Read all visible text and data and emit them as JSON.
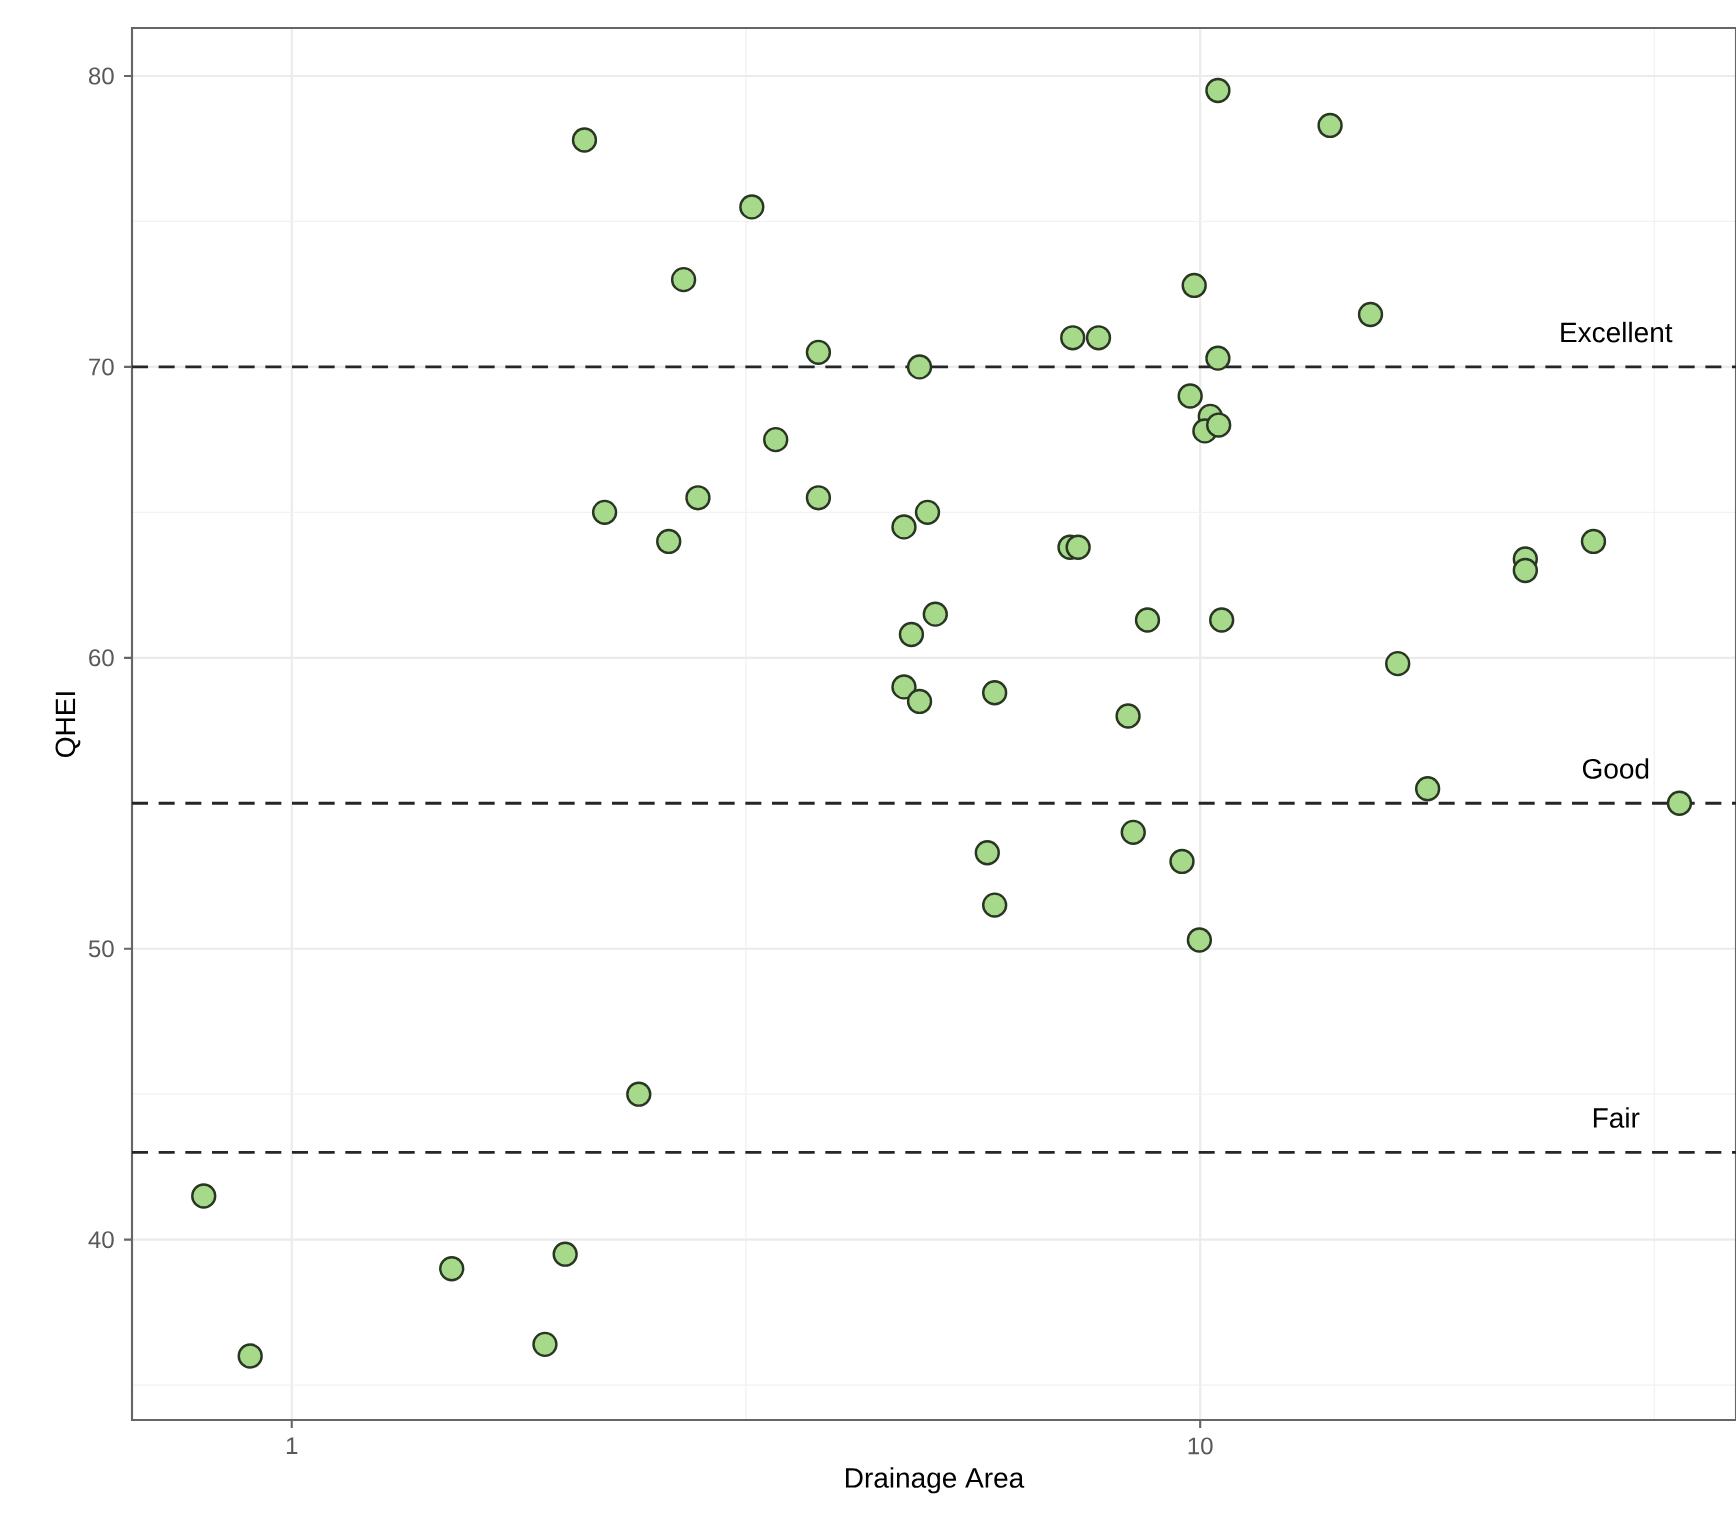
{
  "chart_data": {
    "type": "scatter",
    "xlabel": "Drainage Area",
    "ylabel": "QHEI",
    "log": "x",
    "xlim": [
      0.667,
      38.9
    ],
    "ylim": [
      33.8,
      81.65
    ],
    "xticks": [
      1,
      10
    ],
    "yticks": [
      40,
      50,
      60,
      70,
      80
    ],
    "grid": true,
    "marker": "circle",
    "series": [
      {
        "color": "#a6d98a",
        "x": [
          2.1,
          3.21,
          2.7,
          3.8,
          4.91,
          3.41,
          2.21,
          2.8,
          2.6,
          3.8,
          4.72,
          5.01,
          4.81,
          5.11,
          4.72,
          4.91,
          10.46,
          13.9,
          9.85,
          15.4,
          7.24,
          7.73,
          10.46,
          9.75,
          10.26,
          10.12,
          10.48,
          7.19,
          7.34,
          22.8,
          22.8,
          27.1,
          8.75,
          10.56,
          16.5,
          5.94,
          8.33,
          17.8,
          33.7,
          5.83,
          5.94,
          8.44,
          9.55,
          9.98,
          2.41,
          0.8,
          0.9,
          1.5,
          2.0,
          1.9
        ],
        "values": [
          77.8,
          75.5,
          73.0,
          70.5,
          70.0,
          67.5,
          65.0,
          65.5,
          64.0,
          65.5,
          64.5,
          65.0,
          60.8,
          61.5,
          59.0,
          58.5,
          79.5,
          78.3,
          72.8,
          71.8,
          71.0,
          71.0,
          70.3,
          69.0,
          68.3,
          67.8,
          68.0,
          63.8,
          63.8,
          63.4,
          63.0,
          64.0,
          61.3,
          61.3,
          59.8,
          58.8,
          58.0,
          55.5,
          55.0,
          53.3,
          51.5,
          54.0,
          53.0,
          50.3,
          45.0,
          41.5,
          36.0,
          39.0,
          39.5,
          36.4
        ]
      }
    ],
    "ref_lines": [
      {
        "axis": "y",
        "value": 70,
        "label": "Excellent",
        "line_style": "dashed"
      },
      {
        "axis": "y",
        "value": 55,
        "label": "Good",
        "line_style": "dashed"
      },
      {
        "axis": "y",
        "value": 43,
        "label": "Fair",
        "line_style": "dashed"
      }
    ]
  }
}
